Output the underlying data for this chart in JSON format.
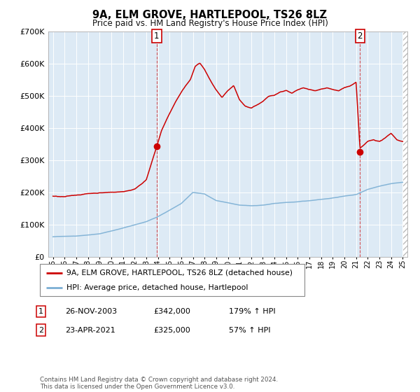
{
  "title": "9A, ELM GROVE, HARTLEPOOL, TS26 8LZ",
  "subtitle": "Price paid vs. HM Land Registry's House Price Index (HPI)",
  "legend_entry1": "9A, ELM GROVE, HARTLEPOOL, TS26 8LZ (detached house)",
  "legend_entry2": "HPI: Average price, detached house, Hartlepool",
  "annotation1_label": "1",
  "annotation1_date": "26-NOV-2003",
  "annotation1_price": "£342,000",
  "annotation1_hpi": "179% ↑ HPI",
  "annotation2_label": "2",
  "annotation2_date": "23-APR-2021",
  "annotation2_price": "£325,000",
  "annotation2_hpi": "57% ↑ HPI",
  "footer": "Contains HM Land Registry data © Crown copyright and database right 2024.\nThis data is licensed under the Open Government Licence v3.0.",
  "ylim": [
    0,
    700000
  ],
  "xlim_left": 1994.6,
  "xlim_right": 2025.4,
  "red_color": "#cc0000",
  "blue_color": "#7bafd4",
  "background_color": "#ddeaf5",
  "grid_color": "#ffffff",
  "purchase1_x": 2003.9,
  "purchase1_y": 342000,
  "purchase2_x": 2021.33,
  "purchase2_y": 325000
}
